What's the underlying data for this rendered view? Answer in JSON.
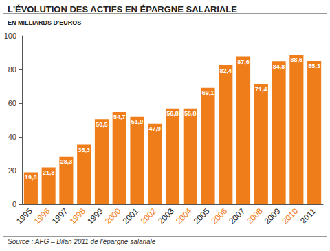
{
  "chart_data": {
    "type": "bar",
    "title": "L'ÉVOLUTION DES ACTIFS EN ÉPARGNE SALARIALE",
    "subtitle": "EN MILLIARDS D'EUROS",
    "source": "Source : AFG – Bilan 2011 de l'épargne salariale",
    "categories": [
      "1995",
      "1996",
      "1997",
      "1998",
      "1999",
      "2000",
      "2001",
      "2002",
      "2003",
      "2004",
      "2005",
      "2006",
      "2007",
      "2008",
      "2009",
      "2010",
      "2011"
    ],
    "values": [
      19.0,
      21.8,
      28.3,
      35.3,
      50.5,
      54.7,
      51.9,
      47.9,
      56.8,
      56.8,
      69.1,
      82.4,
      87.6,
      71.4,
      84.8,
      88.6,
      85.3
    ],
    "value_labels": [
      "19,0",
      "21,8",
      "28,3",
      "35,3",
      "50,5",
      "54,7",
      "51,9",
      "47,9",
      "56,8",
      "56,8",
      "69,1",
      "82,4",
      "87,6",
      "71,4",
      "84,8",
      "88,6",
      "85,3"
    ],
    "color": "#ef7d1a",
    "ylim": [
      0,
      100
    ],
    "yticks": [
      0,
      20,
      40,
      60,
      80,
      100
    ],
    "grid": false,
    "data_labels": true
  }
}
